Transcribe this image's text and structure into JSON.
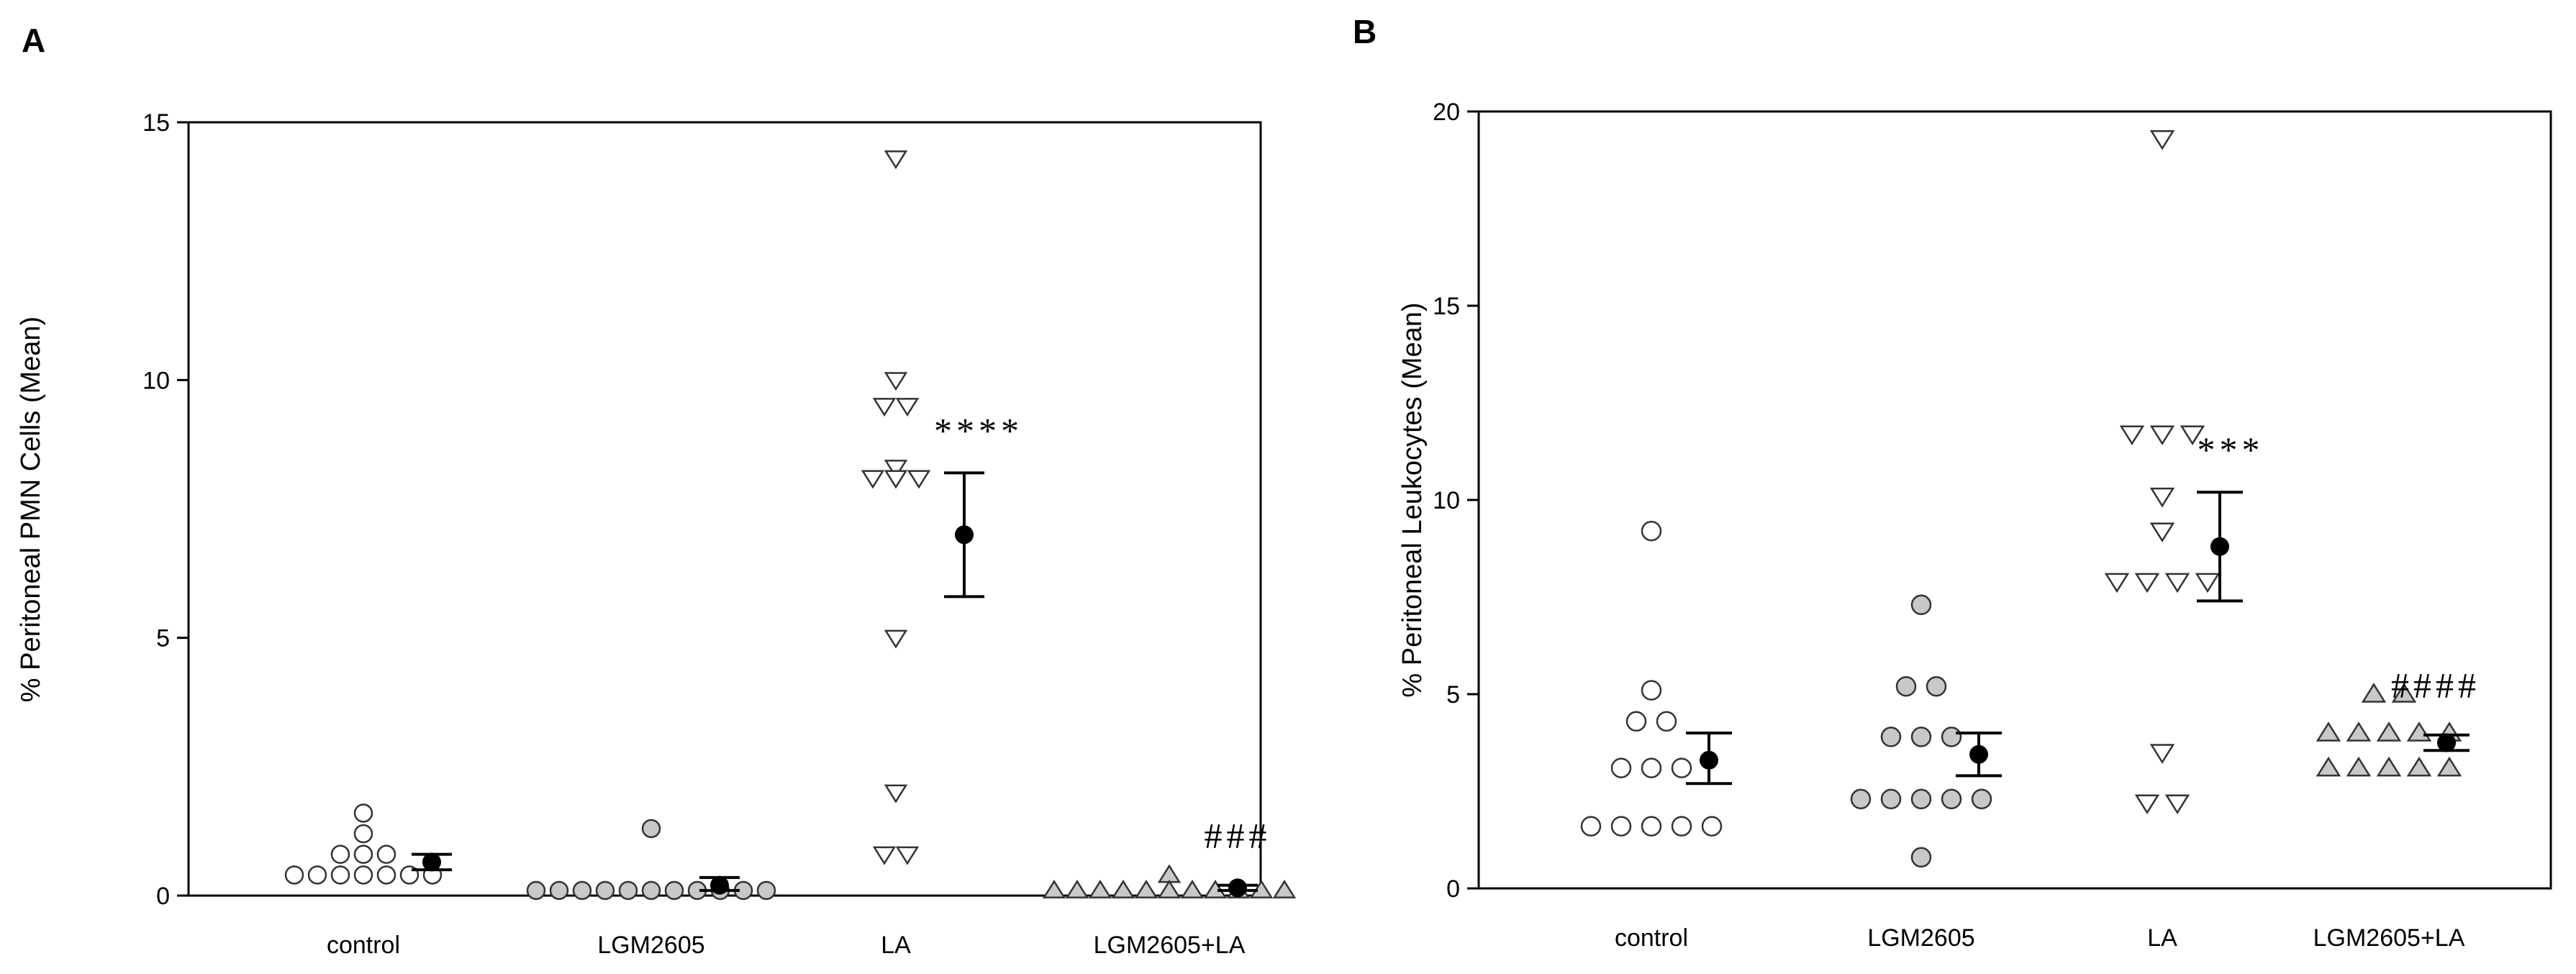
{
  "chart_data": [
    {
      "type": "scatter",
      "panel": "A",
      "ylabel": "% Peritoneal PMN Cells (Mean)",
      "xlabel": "",
      "ylim": [
        0,
        15
      ],
      "yticks": [
        0,
        5,
        10,
        15
      ],
      "categories": [
        "control",
        "LGM2605",
        "LA",
        "LGM2605+LA"
      ],
      "groups": [
        {
          "name": "control",
          "marker": "circle",
          "fill": "#ffffff",
          "values": [
            1.6,
            1.2,
            0.8,
            0.8,
            0.8,
            0.4,
            0.4,
            0.4,
            0.4,
            0.4,
            0.4,
            0.4
          ],
          "mean": 0.65,
          "err_low": 0.5,
          "err_high": 0.8,
          "annotation": ""
        },
        {
          "name": "LGM2605",
          "marker": "circle",
          "fill": "#c8c8c8",
          "values": [
            1.3,
            0.1,
            0.1,
            0.1,
            0.1,
            0.1,
            0.1,
            0.1,
            0.1,
            0.1,
            0.1,
            0.1
          ],
          "mean": 0.2,
          "err_low": 0.1,
          "err_high": 0.35,
          "annotation": ""
        },
        {
          "name": "LA",
          "marker": "triangle-down",
          "fill": "#ffffff",
          "values": [
            14.3,
            10.0,
            9.5,
            9.5,
            8.3,
            8.1,
            8.1,
            8.1,
            5.0,
            2.0,
            0.8,
            0.8
          ],
          "mean": 7.0,
          "err_low": 5.8,
          "err_high": 8.2,
          "annotation": "****"
        },
        {
          "name": "LGM2605+LA",
          "marker": "triangle-up",
          "fill": "#c8c8c8",
          "values": [
            0.4,
            0.1,
            0.1,
            0.1,
            0.1,
            0.1,
            0.1,
            0.1,
            0.1,
            0.1,
            0.1,
            0.1
          ],
          "mean": 0.15,
          "err_low": 0.1,
          "err_high": 0.2,
          "annotation": "###"
        }
      ]
    },
    {
      "type": "scatter",
      "panel": "B",
      "ylabel": "% Peritoneal Leukocytes (Mean)",
      "xlabel": "",
      "ylim": [
        0,
        20
      ],
      "yticks": [
        0,
        5,
        10,
        15,
        20
      ],
      "categories": [
        "control",
        "LGM2605",
        "LA",
        "LGM2605+LA"
      ],
      "groups": [
        {
          "name": "control",
          "marker": "circle",
          "fill": "#ffffff",
          "values": [
            9.2,
            5.1,
            4.3,
            4.3,
            3.1,
            3.1,
            3.1,
            1.6,
            1.6,
            1.6,
            1.6,
            1.6
          ],
          "mean": 3.3,
          "err_low": 2.7,
          "err_high": 4.0,
          "annotation": ""
        },
        {
          "name": "LGM2605",
          "marker": "circle",
          "fill": "#c8c8c8",
          "values": [
            7.3,
            5.2,
            5.2,
            3.9,
            3.9,
            3.9,
            2.3,
            2.3,
            2.3,
            2.3,
            2.3,
            0.8
          ],
          "mean": 3.45,
          "err_low": 2.9,
          "err_high": 4.0,
          "annotation": ""
        },
        {
          "name": "LA",
          "marker": "triangle-down",
          "fill": "#ffffff",
          "values": [
            19.3,
            11.7,
            11.7,
            11.7,
            10.1,
            9.2,
            7.9,
            7.9,
            7.9,
            7.9,
            3.5,
            2.2,
            2.2
          ],
          "mean": 8.8,
          "err_low": 7.4,
          "err_high": 10.2,
          "annotation": "***"
        },
        {
          "name": "LGM2605+LA",
          "marker": "triangle-up",
          "fill": "#c8c8c8",
          "values": [
            5.0,
            5.0,
            4.0,
            4.0,
            4.0,
            4.0,
            4.0,
            3.1,
            3.1,
            3.1,
            3.1,
            3.1
          ],
          "mean": 3.75,
          "err_low": 3.55,
          "err_high": 3.95,
          "annotation": "####"
        }
      ]
    }
  ]
}
